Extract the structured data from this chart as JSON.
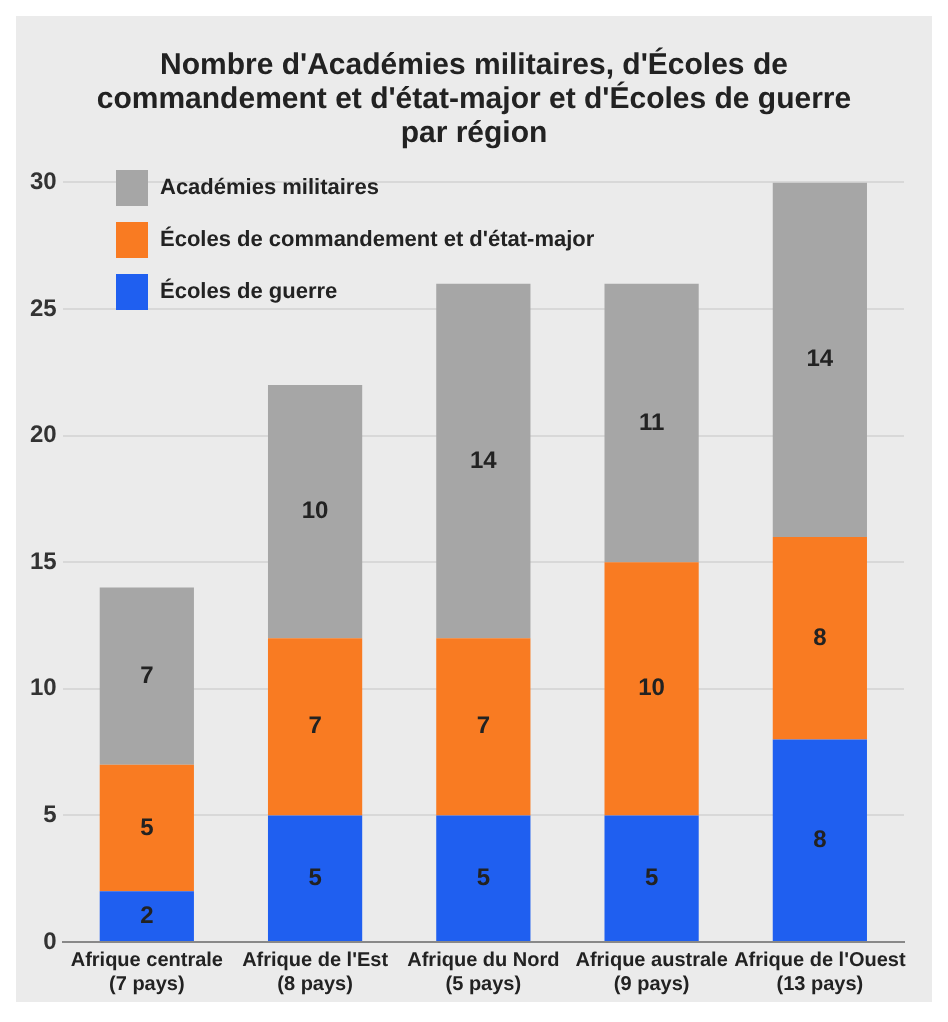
{
  "chart_data": {
    "type": "bar",
    "title": "Nombre d'Académies militaires, d'Écoles de commandement et d'état-major et d'Écoles de guerre par région",
    "categories": [
      "Afrique centrale\n(7 pays)",
      "Afrique de l'Est\n(8 pays)",
      "Afrique du Nord\n(5 pays)",
      "Afrique australe\n(9 pays)",
      "Afrique de l'Ouest\n(13 pays)"
    ],
    "series": [
      {
        "name": "Écoles de guerre",
        "color": "#1f5ff0",
        "values": [
          2,
          5,
          5,
          5,
          8
        ]
      },
      {
        "name": "Écoles de commandement et d'état-major",
        "color": "#f97b22",
        "values": [
          5,
          7,
          7,
          10,
          8
        ]
      },
      {
        "name": "Académies militaires",
        "color": "#a6a6a6",
        "values": [
          7,
          10,
          14,
          11,
          14
        ]
      }
    ],
    "stacked": true,
    "ylim": [
      0,
      30
    ],
    "yticks": [
      0,
      5,
      10,
      15,
      20,
      25,
      30
    ],
    "grid": "y",
    "legend": "top left",
    "data_labels": true
  }
}
